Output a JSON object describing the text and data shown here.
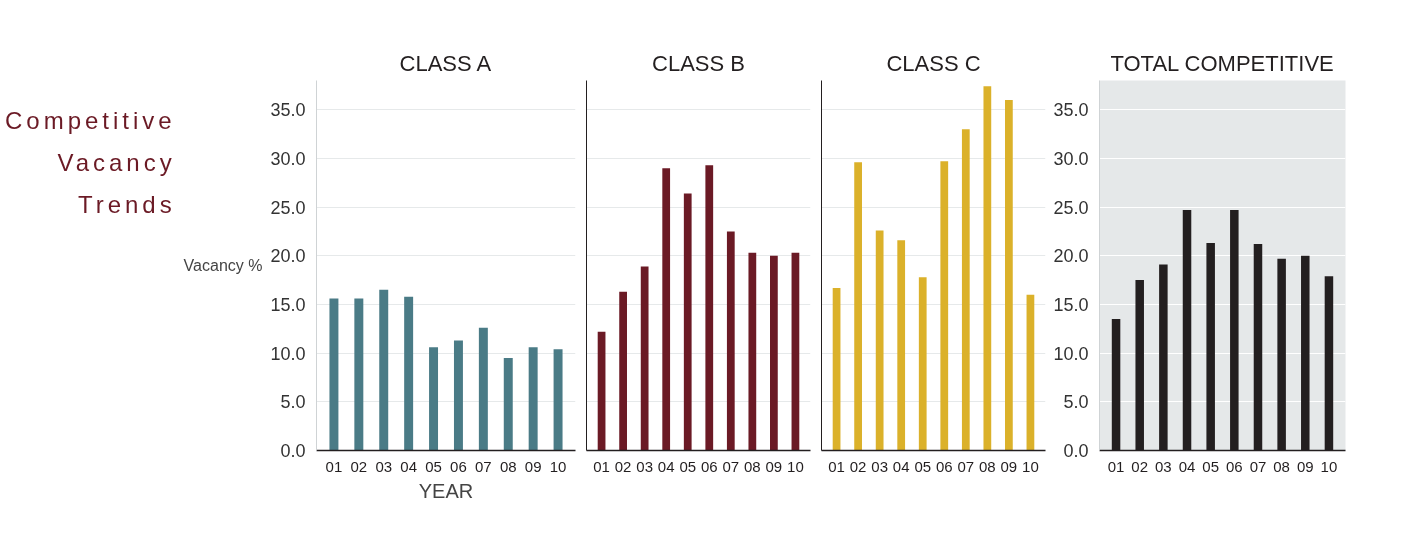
{
  "chart_data": [
    {
      "type": "bar",
      "title": "CLASS A",
      "annotations": [
        "Competitive Vacancy Trends"
      ],
      "ylabel": "Vacancy %",
      "xlabel": "YEAR",
      "categories": [
        "01",
        "02",
        "03",
        "04",
        "05",
        "06",
        "07",
        "08",
        "09",
        "10"
      ],
      "values": [
        15.6,
        15.6,
        16.5,
        15.8,
        10.6,
        11.3,
        12.6,
        9.5,
        10.6,
        10.4
      ],
      "color": "#4a7b86",
      "ylim": [
        0,
        38
      ],
      "yticks": [
        {
          "value": 0,
          "label": "0.0"
        },
        {
          "value": 5,
          "label": "5.0"
        },
        {
          "value": 10,
          "label": "10.0"
        },
        {
          "value": 15,
          "label": "15.0"
        },
        {
          "value": 20,
          "label": "20.0"
        },
        {
          "value": 25,
          "label": "25.0"
        },
        {
          "value": 30,
          "label": "30.0"
        },
        {
          "value": 35,
          "label": "35.0"
        }
      ],
      "grid": "y"
    },
    {
      "type": "bar",
      "title": "CLASS B",
      "categories": [
        "01",
        "02",
        "03",
        "04",
        "05",
        "06",
        "07",
        "08",
        "09",
        "10"
      ],
      "values": [
        12.2,
        16.3,
        18.9,
        29.0,
        26.4,
        29.3,
        22.5,
        20.3,
        20.0,
        20.3
      ],
      "color": "#6b1a25",
      "ylim": [
        0,
        38
      ],
      "yticks": [
        0,
        5,
        10,
        15,
        20,
        25,
        30,
        35
      ],
      "grid": "y",
      "tick_labels": "x"
    },
    {
      "type": "bar",
      "title": "CLASS C",
      "categories": [
        "01",
        "02",
        "03",
        "04",
        "05",
        "06",
        "07",
        "08",
        "09",
        "10"
      ],
      "values": [
        16.7,
        29.6,
        22.6,
        21.6,
        17.8,
        29.7,
        33.0,
        37.4,
        36.0,
        16.0
      ],
      "color": "#dbb12a",
      "ylim": [
        0,
        38
      ],
      "yticks": [
        0,
        5,
        10,
        15,
        20,
        25,
        30,
        35
      ],
      "grid": "y",
      "tick_labels": "x"
    },
    {
      "type": "bar",
      "title": "TOTAL COMPETITIVE",
      "categories": [
        "01",
        "02",
        "03",
        "04",
        "05",
        "06",
        "07",
        "08",
        "09",
        "10"
      ],
      "values": [
        13.5,
        17.5,
        19.1,
        24.7,
        21.3,
        24.7,
        21.2,
        19.7,
        20.0,
        17.9
      ],
      "color": "#231f20",
      "ylim": [
        0,
        38
      ],
      "yticks": [
        {
          "value": 0,
          "label": "0.0"
        },
        {
          "value": 5,
          "label": "5.0"
        },
        {
          "value": 10,
          "label": "10.0"
        },
        {
          "value": 15,
          "label": "15.0"
        },
        {
          "value": 20,
          "label": "20.0"
        },
        {
          "value": 25,
          "label": "25.0"
        },
        {
          "value": 30,
          "label": "30.0"
        },
        {
          "value": 35,
          "label": "35.0"
        }
      ],
      "grid": "y"
    }
  ]
}
